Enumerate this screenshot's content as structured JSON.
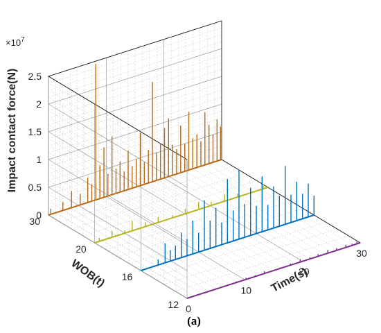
{
  "chart_data": {
    "type": "line",
    "subtype": "3d-waterfall",
    "caption": "(a)",
    "xlabel": "Time(s)",
    "ylabel": "WOB(t)",
    "zlabel": "Impact contact force(N)",
    "z_multiplier": "×10",
    "z_multiplier_exp": "7",
    "xlim": [
      0,
      30
    ],
    "zlim": [
      0,
      2.5
    ],
    "x_ticks": [
      "0",
      "10",
      "20",
      "30"
    ],
    "y_ticks": [
      "12",
      "16",
      "20",
      "30"
    ],
    "z_ticks": [
      "0",
      "0.5",
      "1",
      "1.5",
      "2",
      "2.5"
    ],
    "grid": true,
    "series": [
      {
        "wob": "12",
        "color": "#7e2f8e",
        "x": [
          8.5,
          10.2,
          11.8,
          13.4,
          16.1,
          17.9,
          19.6,
          21.3,
          22.7,
          24.4,
          25.9,
          27.5,
          28.6,
          29.4
        ],
        "values": [
          0.02,
          0.03,
          0.02,
          0.04,
          0.02,
          0.03,
          0.05,
          0.03,
          0.04,
          0.06,
          0.04,
          0.05,
          0.03,
          0.04
        ]
      },
      {
        "wob": "16",
        "color": "#0072bd",
        "x": [
          3.0,
          4.2,
          5.1,
          6.0,
          7.0,
          8.0,
          9.0,
          10.0,
          11.0,
          12.0,
          13.0,
          14.0,
          15.0,
          16.0,
          17.0,
          18.0,
          19.0,
          20.0,
          21.0,
          22.0,
          23.0,
          24.0,
          25.0,
          26.0,
          27.0,
          28.0,
          29.0,
          30.0
        ],
        "values": [
          0.1,
          0.35,
          0.2,
          0.25,
          0.45,
          0.3,
          0.6,
          0.35,
          0.9,
          0.5,
          0.7,
          0.4,
          1.15,
          0.55,
          1.25,
          0.6,
          0.85,
          0.5,
          1.0,
          0.45,
          0.75,
          0.55,
          1.05,
          0.5,
          0.7,
          0.45,
          0.6,
          0.35
        ]
      },
      {
        "wob": "20",
        "color": "#b5b51a",
        "x": [
          0.8,
          3.0,
          5.2,
          6.5,
          8.8,
          11.0,
          13.5,
          15.7,
          18.0,
          20.2,
          22.5,
          24.8,
          27.0,
          29.2
        ],
        "values": [
          0.06,
          0.12,
          0.05,
          0.18,
          0.08,
          0.1,
          0.05,
          0.09,
          0.14,
          0.07,
          0.12,
          0.06,
          0.1,
          0.08
        ]
      },
      {
        "wob": "30",
        "color": "#b86a14",
        "x": [
          0.4,
          2.5,
          4.0,
          5.5,
          6.8,
          7.5,
          8.2,
          8.9,
          9.6,
          10.3,
          11.0,
          11.7,
          12.4,
          13.1,
          13.8,
          14.5,
          15.2,
          15.9,
          16.6,
          17.3,
          18.0,
          18.7,
          19.4,
          20.1,
          20.8,
          21.5,
          22.2,
          22.9,
          23.6,
          24.3,
          25.0,
          25.7,
          26.4,
          27.1,
          27.8,
          28.5,
          29.2,
          29.8
        ],
        "values": [
          0.1,
          0.15,
          0.3,
          0.2,
          0.45,
          0.3,
          2.45,
          0.6,
          0.9,
          0.4,
          1.05,
          0.45,
          0.55,
          0.35,
          0.7,
          0.4,
          0.5,
          0.95,
          0.4,
          0.6,
          1.8,
          0.5,
          0.65,
          0.9,
          1.05,
          0.55,
          0.45,
          0.85,
          0.5,
          1.05,
          0.55,
          0.6,
          0.45,
          0.95,
          0.7,
          0.5,
          0.75,
          0.6
        ]
      }
    ]
  }
}
